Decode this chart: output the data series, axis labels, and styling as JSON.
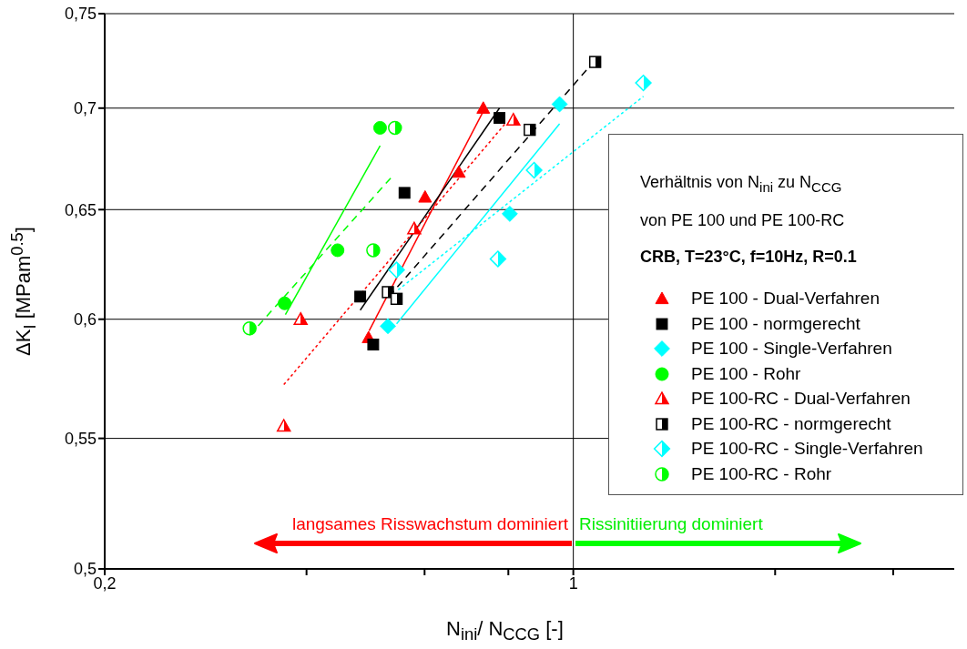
{
  "chart_data": {
    "type": "scatter",
    "xlabel": "N$_{ini}$/ N$_{CCG}$ [-]",
    "ylabel": "ΔK$_{I}$ [MPam$^{0.5}$]",
    "legend_title": "Verhältnis von N$_{ini}$ zu N$_{CCG}$\nvon PE 100 und PE 100-RC",
    "log": "xy",
    "xlim": [
      0.2,
      3.7
    ],
    "ylim": [
      0.5,
      0.75
    ],
    "xticks": [
      {
        "value": 0.2,
        "label": "0,2"
      },
      {
        "value": 0.4,
        "label": null
      },
      {
        "value": 0.6,
        "label": null
      },
      {
        "value": 0.8,
        "label": null
      },
      {
        "value": 1,
        "label": "1"
      },
      {
        "value": 2,
        "label": null
      },
      {
        "value": 3,
        "label": null
      }
    ],
    "yticks": [
      {
        "value": 0.5,
        "label": "0,5"
      },
      {
        "value": 0.55,
        "label": "0,55"
      },
      {
        "value": 0.6,
        "label": "0,6"
      },
      {
        "value": 0.65,
        "label": "0,65"
      },
      {
        "value": 0.7,
        "label": "0,7"
      },
      {
        "value": 0.75,
        "label": "0,75"
      }
    ],
    "grid": "y",
    "legend": "right",
    "ref_lines": [
      {
        "axis": "x",
        "value": 1,
        "color": "#000000"
      }
    ],
    "annotations": [
      "langsames Risswachstum dominiert",
      "Rissinitiierung dominiert",
      "CRB, T=23°C, f=10Hz, R=0.1"
    ],
    "series": [
      {
        "type": "scatter",
        "name": "PE 100 - Dual-Verfahren",
        "color": "#ff0000",
        "marker": "triangle",
        "x": [
          0.734,
          0.675,
          0.601,
          0.495
        ],
        "values": [
          0.7,
          0.668,
          0.656,
          0.592
        ]
      },
      {
        "type": "scatter",
        "name": "PE 100 - normgerecht",
        "color": "#000000",
        "marker": "square",
        "x": [
          0.776,
          0.56,
          0.481,
          0.503
        ],
        "values": [
          0.695,
          0.658,
          0.61,
          0.589
        ]
      },
      {
        "type": "scatter",
        "name": "PE 100 - Single-Verfahren",
        "color": "#00ffff",
        "marker": "diamond",
        "x": [
          0.954,
          0.804,
          0.529
        ],
        "values": [
          0.702,
          0.648,
          0.597
        ]
      },
      {
        "type": "scatter",
        "name": "PE 100 - Rohr",
        "color": "#00ff00",
        "marker": "circle",
        "x": [
          0.515,
          0.445,
          0.371
        ],
        "values": [
          0.69,
          0.631,
          0.607
        ]
      },
      {
        "type": "scatter",
        "name": "PE 100-RC - Dual-Verfahren",
        "color": "#ff0000",
        "marker": "triangle",
        "x": [
          0.814,
          0.579,
          0.392,
          0.37
        ],
        "values": [
          0.694,
          0.641,
          0.6,
          0.555
        ]
      },
      {
        "type": "scatter",
        "name": "PE 100-RC - normgerecht",
        "color": "#000000",
        "marker": "square",
        "x": [
          1.078,
          0.861,
          0.529,
          0.545
        ],
        "values": [
          0.724,
          0.689,
          0.612,
          0.609
        ]
      },
      {
        "type": "scatter",
        "name": "PE 100-RC - Single-Verfahren",
        "color": "#00ffff",
        "marker": "diamond",
        "x": [
          1.272,
          0.874,
          0.772,
          0.545
        ],
        "values": [
          0.713,
          0.669,
          0.627,
          0.622
        ]
      },
      {
        "type": "scatter",
        "name": "PE 100-RC - Rohr",
        "color": "#00ff00",
        "marker": "circle",
        "x": [
          0.542,
          0.503,
          0.329
        ],
        "values": [
          0.69,
          0.631,
          0.596
        ]
      },
      {
        "type": "line",
        "color": "#ff0000",
        "line_style": "solid",
        "x": [
          0.496,
          0.733
        ],
        "values": [
          0.595,
          0.698
        ]
      },
      {
        "type": "line",
        "color": "#000000",
        "line_style": "solid",
        "x": [
          0.481,
          0.776
        ],
        "values": [
          0.604,
          0.7
        ]
      },
      {
        "type": "line",
        "color": "#00ffff",
        "line_style": "solid",
        "x": [
          0.545,
          0.954
        ],
        "values": [
          0.598,
          0.692
        ]
      },
      {
        "type": "line",
        "color": "#00ff00",
        "line_style": "solid",
        "x": [
          0.372,
          0.515
        ],
        "values": [
          0.602,
          0.681
        ]
      },
      {
        "type": "line",
        "color": "#ff0000",
        "line_style": "dotted",
        "x": [
          0.37,
          0.791
        ],
        "values": [
          0.572,
          0.692
        ]
      },
      {
        "type": "line",
        "color": "#000000",
        "line_style": "dashed",
        "x": [
          0.531,
          1.078
        ],
        "values": [
          0.61,
          0.725
        ]
      },
      {
        "type": "line",
        "color": "#00ffff",
        "line_style": "dotted",
        "x": [
          0.548,
          1.272
        ],
        "values": [
          0.613,
          0.706
        ]
      },
      {
        "type": "line",
        "color": "#00ff00",
        "line_style": "dashed",
        "x": [
          0.329,
          0.537
        ],
        "values": [
          0.593,
          0.666
        ]
      }
    ]
  }
}
